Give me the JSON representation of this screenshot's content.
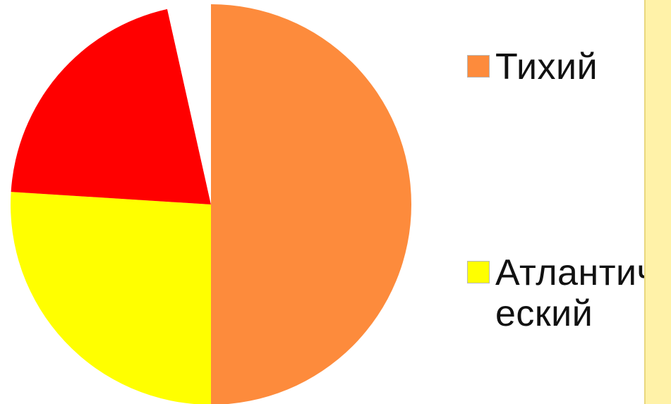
{
  "chart_data": {
    "type": "pie",
    "categories": [
      "Тихий",
      "Атлантический",
      "",
      ""
    ],
    "values": [
      50,
      26,
      20.5,
      3.5
    ],
    "colors": [
      "#fd8b3c",
      "#ffff00",
      "#ff0000",
      "#ffffff"
    ],
    "legend_entries": [
      {
        "label": "Тихий",
        "color": "#fd8b3c"
      },
      {
        "label": "Атлантический",
        "color": "#ffff00"
      }
    ],
    "legend_position": "right",
    "start_angle": "12 o'clock",
    "direction": "clockwise"
  },
  "panel": {
    "color": "#fff2a8"
  }
}
